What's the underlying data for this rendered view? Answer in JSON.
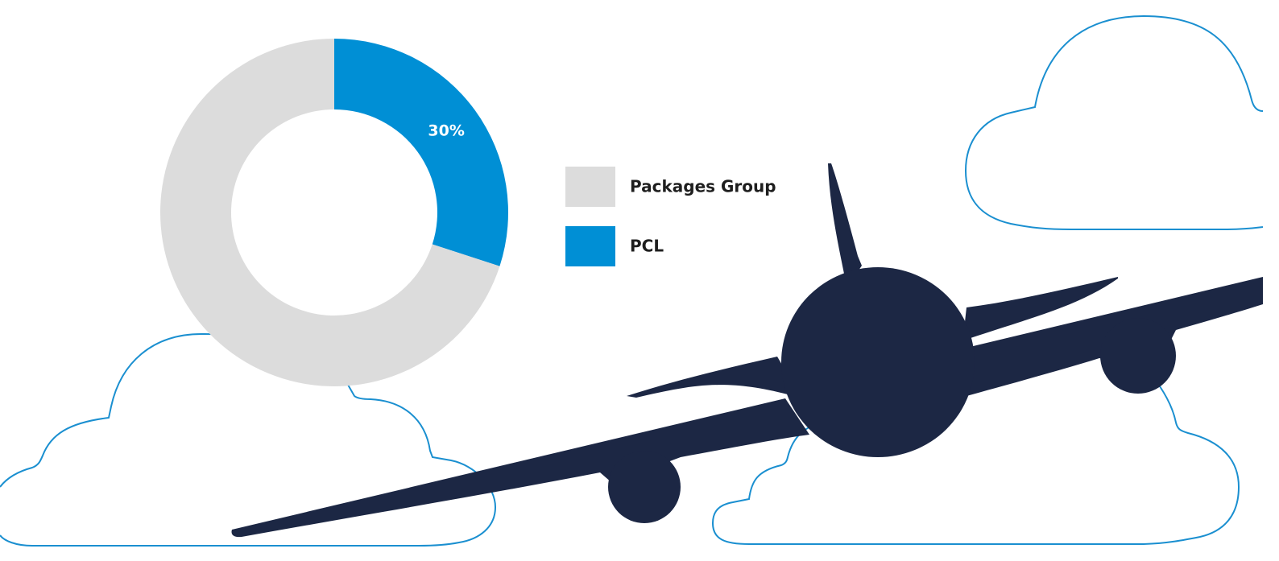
{
  "chart_data": {
    "type": "pie",
    "donut": true,
    "categories": [
      "Packages Group",
      "PCL"
    ],
    "values": [
      70,
      30
    ],
    "value_labels": [
      null,
      "30%"
    ],
    "colors": [
      "#dcdcdc",
      "#008fd5"
    ],
    "legend": "right"
  }
}
